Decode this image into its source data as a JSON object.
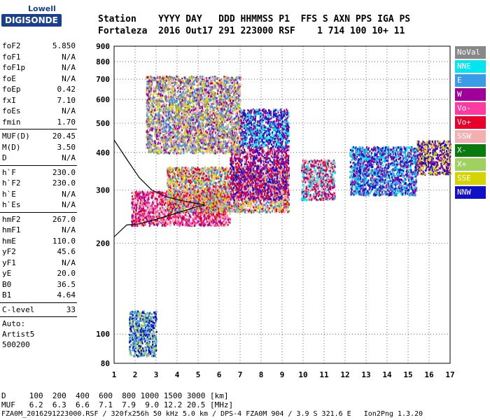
{
  "logo": {
    "line1": "Lowell",
    "line2": "DIGISONDE"
  },
  "header": {
    "labels": "Station    YYYY DAY   DDD HHMMSS P1  FFS S AXN PPS IGA PS",
    "values": "Fortaleza  2016 Out17 291 223000 RSF    1 714 100 10+ 11"
  },
  "params": {
    "group1": [
      {
        "k": "foF2",
        "v": "5.850"
      },
      {
        "k": "foF1",
        "v": "N/A"
      },
      {
        "k": "foF1p",
        "v": "N/A"
      },
      {
        "k": "foE",
        "v": "N/A"
      },
      {
        "k": "foEp",
        "v": "0.42"
      },
      {
        "k": "fxI",
        "v": "7.10"
      },
      {
        "k": "foEs",
        "v": "N/A"
      },
      {
        "k": "fmin",
        "v": "1.70"
      }
    ],
    "group2": [
      {
        "k": "MUF(D)",
        "v": "20.45"
      },
      {
        "k": "M(D)",
        "v": "3.50"
      },
      {
        "k": "D",
        "v": "N/A"
      }
    ],
    "group3": [
      {
        "k": "h`F",
        "v": "230.0"
      },
      {
        "k": "h`F2",
        "v": "230.0"
      },
      {
        "k": "h`E",
        "v": "N/A"
      },
      {
        "k": "h`Es",
        "v": "N/A"
      }
    ],
    "group4": [
      {
        "k": "hmF2",
        "v": "267.0"
      },
      {
        "k": "hmF1",
        "v": "N/A"
      },
      {
        "k": "hmE",
        "v": "110.0"
      },
      {
        "k": "yF2",
        "v": "45.6"
      },
      {
        "k": "yF1",
        "v": "N/A"
      },
      {
        "k": "yE",
        "v": "20.0"
      },
      {
        "k": "B0",
        "v": "36.5"
      },
      {
        "k": "B1",
        "v": "4.64"
      }
    ],
    "group5": [
      {
        "k": "C-level",
        "v": "33"
      }
    ],
    "auto": [
      "Auto:",
      "Artist5",
      "500200"
    ]
  },
  "legend": [
    {
      "label": "NoVal",
      "bg": "#888888",
      "fg": "#ffffff"
    },
    {
      "label": "NNE",
      "bg": "#00e5ee",
      "fg": "#ffffff"
    },
    {
      "label": "E",
      "bg": "#3a9be8",
      "fg": "#ffffff"
    },
    {
      "label": "W",
      "bg": "#a0009a",
      "fg": "#ffffff"
    },
    {
      "label": "Vo-",
      "bg": "#ff3aa0",
      "fg": "#ffffff"
    },
    {
      "label": "Vo+",
      "bg": "#e8002a",
      "fg": "#ffffff"
    },
    {
      "label": "SSW",
      "bg": "#f4b0b0",
      "fg": "#ffffff"
    },
    {
      "label": "X-",
      "bg": "#0a7a10",
      "fg": "#ffffff"
    },
    {
      "label": "X+",
      "bg": "#a0d060",
      "fg": "#ffffff"
    },
    {
      "label": "SSE",
      "bg": "#d4d400",
      "fg": "#ffffff"
    },
    {
      "label": "NNW",
      "bg": "#1010c8",
      "fg": "#ffffff"
    }
  ],
  "chart_data": {
    "type": "scatter",
    "title": "",
    "xlabel": "",
    "ylabel": "",
    "xlim": [
      1,
      17
    ],
    "ylim": [
      80,
      900
    ],
    "y_scale": "log",
    "grid": true,
    "x_ticks": [
      1,
      2,
      3,
      4,
      5,
      6,
      7,
      8,
      9,
      10,
      11,
      12,
      13,
      14,
      15,
      16,
      17
    ],
    "y_ticks": [
      80,
      100,
      200,
      300,
      400,
      500,
      600,
      700,
      800,
      900
    ],
    "clusters": [
      {
        "name": "F-trace",
        "x": [
          1.8,
          6.5
        ],
        "y": [
          230,
          300
        ],
        "colors": [
          "#e8002a",
          "#a0009a",
          "#ff3aa0",
          "#f4b0b0"
        ]
      },
      {
        "name": "F-trace-upper",
        "x": [
          3.5,
          9.3
        ],
        "y": [
          255,
          360
        ],
        "colors": [
          "#d4d400",
          "#f4b0b0",
          "#e8002a",
          "#3a9be8"
        ]
      },
      {
        "name": "F2-cloud",
        "x": [
          6.5,
          9.3
        ],
        "y": [
          280,
          420
        ],
        "colors": [
          "#a0009a",
          "#1010c8",
          "#e8002a",
          "#f4b0b0"
        ]
      },
      {
        "name": "spread-high",
        "x": [
          2.5,
          7
        ],
        "y": [
          400,
          720
        ],
        "colors": [
          "#d4d400",
          "#3a9be8",
          "#f4b0b0",
          "#a0009a",
          "#888888"
        ]
      },
      {
        "name": "spread-mid",
        "x": [
          7,
          9.3
        ],
        "y": [
          420,
          560
        ],
        "colors": [
          "#1010c8",
          "#00e5ee",
          "#a0009a"
        ]
      },
      {
        "name": "band-10",
        "x": [
          9.9,
          11.5
        ],
        "y": [
          280,
          380
        ],
        "colors": [
          "#f4b0b0",
          "#e8002a",
          "#00e5ee",
          "#a0009a"
        ]
      },
      {
        "name": "cloud-13-15",
        "x": [
          12.2,
          15.4
        ],
        "y": [
          290,
          420
        ],
        "colors": [
          "#1010c8",
          "#3a9be8",
          "#00e5ee",
          "#a0009a"
        ]
      },
      {
        "name": "right-edge",
        "x": [
          15.4,
          17
        ],
        "y": [
          340,
          440
        ],
        "colors": [
          "#a0009a",
          "#1010c8",
          "#d4d400"
        ]
      },
      {
        "name": "low-echo",
        "x": [
          1.7,
          3
        ],
        "y": [
          85,
          120
        ],
        "colors": [
          "#1010c8",
          "#3a9be8",
          "#a0d060"
        ]
      }
    ],
    "model_curve": {
      "x": [
        1,
        1.6,
        2.2,
        3,
        4,
        5,
        5.3
      ],
      "y": [
        210,
        230,
        232,
        240,
        252,
        265,
        267
      ]
    },
    "upper_curve": {
      "x": [
        1,
        1.6,
        2.2,
        2.8,
        3.5,
        4.2,
        4.8,
        5.3
      ],
      "y": [
        440,
        380,
        330,
        300,
        285,
        277,
        272,
        268
      ]
    }
  },
  "footer": {
    "d_label": "D     100  200  400  600  800 1000 1500 3000 [km]",
    "muf_label": "MUF   6.2  6.3  6.6  7.1  7.9  9.0 12.2 20.5 [MHz]",
    "file_line": "FZA0M_2016291223000.RSF / 320fx256h 50 kHz 5.0 km / DPS-4 FZA0M 904 / 3.9 S 321.6 E   Ion2Png 1.3.20"
  }
}
